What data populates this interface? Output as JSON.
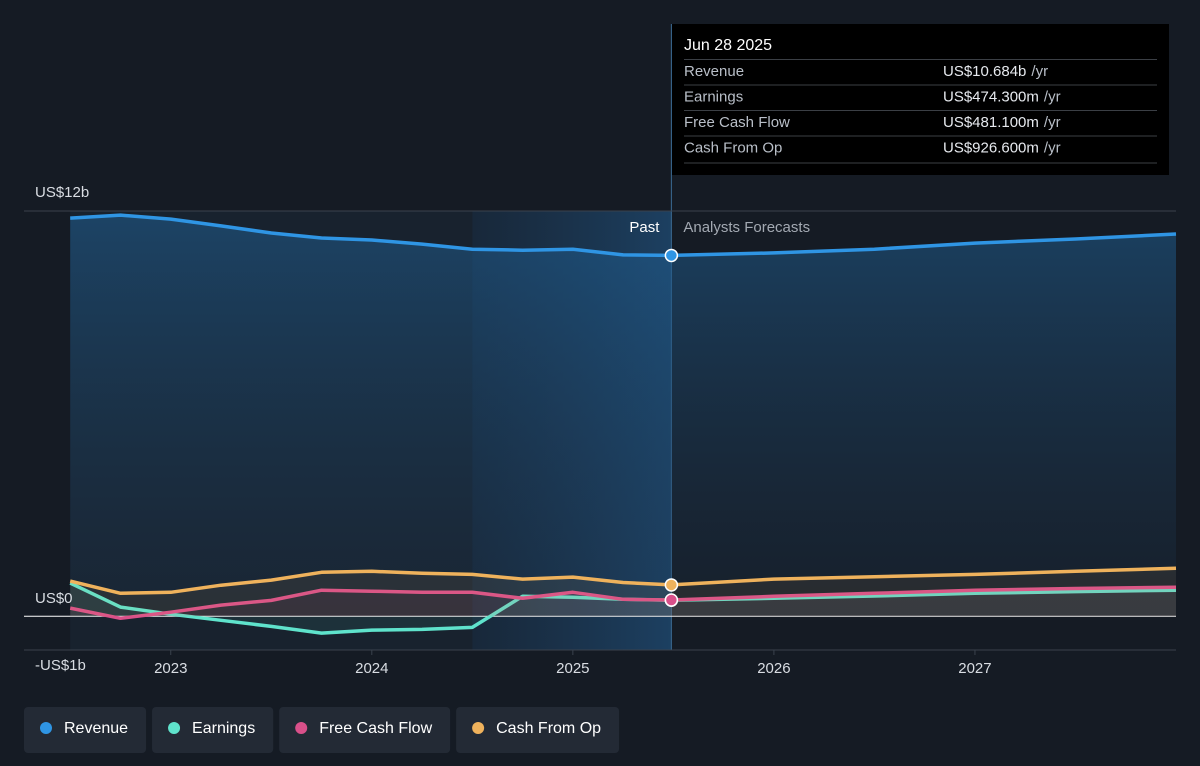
{
  "chart_data": {
    "type": "line",
    "x": [
      2022.5,
      2022.75,
      2023,
      2023.25,
      2023.5,
      2023.75,
      2024,
      2024.25,
      2024.5,
      2024.75,
      2025,
      2025.25,
      2025.49,
      2026,
      2026.5,
      2027,
      2027.5,
      2028
    ],
    "series": [
      {
        "name": "Revenue",
        "color": "#2f95e4",
        "values": [
          11.79,
          11.88,
          11.76,
          11.56,
          11.35,
          11.2,
          11.14,
          11.02,
          10.87,
          10.84,
          10.87,
          10.7,
          10.684,
          10.76,
          10.87,
          11.05,
          11.17,
          11.32
        ]
      },
      {
        "name": "Earnings",
        "color": "#5fe3cc",
        "values": [
          0.98,
          0.27,
          0.06,
          -0.12,
          -0.3,
          -0.5,
          -0.41,
          -0.39,
          -0.33,
          0.59,
          0.56,
          0.5,
          0.474,
          0.53,
          0.6,
          0.68,
          0.73,
          0.77
        ]
      },
      {
        "name": "Free Cash Flow",
        "color": "#d9508a",
        "values": [
          0.24,
          -0.06,
          0.12,
          0.33,
          0.47,
          0.77,
          0.74,
          0.71,
          0.71,
          0.53,
          0.71,
          0.5,
          0.481,
          0.59,
          0.68,
          0.77,
          0.82,
          0.86
        ]
      },
      {
        "name": "Cash From Op",
        "color": "#efb25c",
        "values": [
          1.04,
          0.68,
          0.71,
          0.92,
          1.07,
          1.3,
          1.33,
          1.27,
          1.24,
          1.1,
          1.16,
          1.0,
          0.9266,
          1.1,
          1.17,
          1.24,
          1.33,
          1.42
        ]
      }
    ],
    "xlim": [
      2022.27,
      2028
    ],
    "ylim": [
      -1,
      12
    ],
    "xticks": [
      2023,
      2024,
      2025,
      2026,
      2027
    ],
    "yticks": [
      {
        "value": 12,
        "label": "US$12b"
      },
      {
        "value": 0,
        "label": "US$0"
      },
      {
        "value": -1,
        "label": "-US$1b"
      }
    ],
    "highlight_start": 2024.5,
    "forecast_start": 2025.49,
    "annotations": {
      "past": "Past",
      "forecast": "Analysts Forecasts"
    },
    "tooltip": {
      "date": "Jun 28 2025",
      "point_index": 12,
      "rows": [
        {
          "value": "US$10.684b",
          "unit": "/yr"
        },
        {
          "value": "US$474.300m",
          "unit": "/yr"
        },
        {
          "value": "US$481.100m",
          "unit": "/yr"
        },
        {
          "value": "US$926.600m",
          "unit": "/yr"
        }
      ]
    }
  }
}
